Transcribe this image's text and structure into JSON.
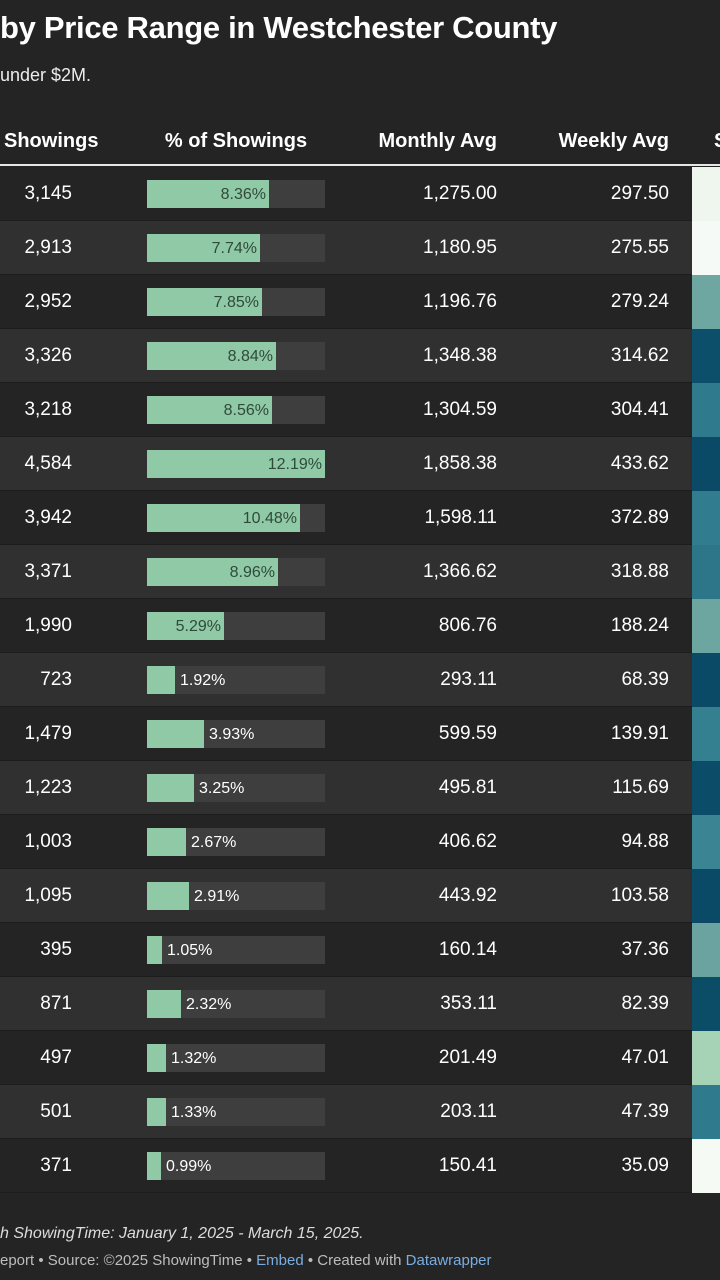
{
  "title": "by Price Range in Westchester County",
  "subtitle": " under $2M.",
  "columns": {
    "showings": "Showings",
    "pct": "% of Showings",
    "monthly": "Monthly Avg",
    "weekly": "Weekly Avg",
    "next": "S"
  },
  "colors": {
    "bar_fill": "#8fc9a6",
    "bar_track": "#3e3e3e",
    "background": "#242424",
    "row_alt": "#303030",
    "link": "#79aee3"
  },
  "chart_data": {
    "type": "table",
    "columns": [
      "Showings",
      "% of Showings",
      "Monthly Avg",
      "Weekly Avg"
    ],
    "bar_max_pct": 12.19,
    "rows": [
      {
        "showings": "3,145",
        "pct": 8.36,
        "pct_label": "8.36%",
        "monthly": "1,275.00",
        "weekly": "297.50",
        "swatch": "#eef6ee"
      },
      {
        "showings": "2,913",
        "pct": 7.74,
        "pct_label": "7.74%",
        "monthly": "1,180.95",
        "weekly": "275.55",
        "swatch": "#f6faf6"
      },
      {
        "showings": "2,952",
        "pct": 7.85,
        "pct_label": "7.85%",
        "monthly": "1,196.76",
        "weekly": "279.24",
        "swatch": "#6ea6a2"
      },
      {
        "showings": "3,326",
        "pct": 8.84,
        "pct_label": "8.84%",
        "monthly": "1,348.38",
        "weekly": "314.62",
        "swatch": "#0b4f6a"
      },
      {
        "showings": "3,218",
        "pct": 8.56,
        "pct_label": "8.56%",
        "monthly": "1,304.59",
        "weekly": "304.41",
        "swatch": "#2f7a8c"
      },
      {
        "showings": "4,584",
        "pct": 12.19,
        "pct_label": "12.19%",
        "monthly": "1,858.38",
        "weekly": "433.62",
        "swatch": "#0b4a66"
      },
      {
        "showings": "3,942",
        "pct": 10.48,
        "pct_label": "10.48%",
        "monthly": "1,598.11",
        "weekly": "372.89",
        "swatch": "#317c8e"
      },
      {
        "showings": "3,371",
        "pct": 8.96,
        "pct_label": "8.96%",
        "monthly": "1,366.62",
        "weekly": "318.88",
        "swatch": "#2d7589"
      },
      {
        "showings": "1,990",
        "pct": 5.29,
        "pct_label": "5.29%",
        "monthly": "806.76",
        "weekly": "188.24",
        "swatch": "#6da5a1"
      },
      {
        "showings": "723",
        "pct": 1.92,
        "pct_label": "1.92%",
        "monthly": "293.11",
        "weekly": "68.39",
        "swatch": "#0b4a66"
      },
      {
        "showings": "1,479",
        "pct": 3.93,
        "pct_label": "3.93%",
        "monthly": "599.59",
        "weekly": "139.91",
        "swatch": "#347f90"
      },
      {
        "showings": "1,223",
        "pct": 3.25,
        "pct_label": "3.25%",
        "monthly": "495.81",
        "weekly": "115.69",
        "swatch": "#0b4d68"
      },
      {
        "showings": "1,003",
        "pct": 2.67,
        "pct_label": "2.67%",
        "monthly": "406.62",
        "weekly": "94.88",
        "swatch": "#3b8493"
      },
      {
        "showings": "1,095",
        "pct": 2.91,
        "pct_label": "2.91%",
        "monthly": "443.92",
        "weekly": "103.58",
        "swatch": "#0b4a66"
      },
      {
        "showings": "395",
        "pct": 1.05,
        "pct_label": "1.05%",
        "monthly": "160.14",
        "weekly": "37.36",
        "swatch": "#6aa39f"
      },
      {
        "showings": "871",
        "pct": 2.32,
        "pct_label": "2.32%",
        "monthly": "353.11",
        "weekly": "82.39",
        "swatch": "#0b4c67"
      },
      {
        "showings": "497",
        "pct": 1.32,
        "pct_label": "1.32%",
        "monthly": "201.49",
        "weekly": "47.01",
        "swatch": "#a6d2b6"
      },
      {
        "showings": "501",
        "pct": 1.33,
        "pct_label": "1.33%",
        "monthly": "203.11",
        "weekly": "47.39",
        "swatch": "#2f7a8c"
      },
      {
        "showings": "371",
        "pct": 0.99,
        "pct_label": "0.99%",
        "monthly": "150.41",
        "weekly": "35.09",
        "swatch": "#f5faf5"
      }
    ]
  },
  "footer": {
    "note": "h ShowingTime: January 1, 2025 - March 15, 2025.",
    "sources_prefix": "eport • Source: ©2025 ShowingTime • ",
    "embed": "Embed",
    "created_with": " • Created with ",
    "datawrapper": "Datawrapper"
  }
}
